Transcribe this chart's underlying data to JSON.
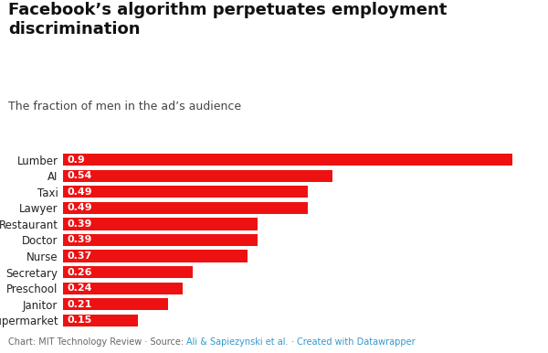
{
  "title": "Facebook’s algorithm perpetuates employment\ndiscrimination",
  "subtitle": "The fraction of men in the ad’s audience",
  "categories": [
    "Lumber",
    "AI",
    "Taxi",
    "Lawyer",
    "Restaurant",
    "Doctor",
    "Nurse",
    "Secretary",
    "Preschool",
    "Janitor",
    "Supermarket"
  ],
  "values": [
    0.9,
    0.54,
    0.49,
    0.49,
    0.39,
    0.39,
    0.37,
    0.26,
    0.24,
    0.21,
    0.15
  ],
  "bar_color": "#ee1111",
  "label_color": "#ffffff",
  "background_color": "#ffffff",
  "title_fontsize": 13,
  "subtitle_fontsize": 9,
  "bar_label_fontsize": 8,
  "category_fontsize": 8.5,
  "footer_gray": "#666666",
  "footer_blue": "#3399cc",
  "footer_text_gray": "Chart: MIT Technology Review · Source: ",
  "footer_text_blue1": "Ali & Sapiezynski et al.",
  "footer_text_dot": " · ",
  "footer_text_blue2": "Created with Datawrapper",
  "xlim": [
    0,
    0.96
  ],
  "bar_height": 0.75
}
